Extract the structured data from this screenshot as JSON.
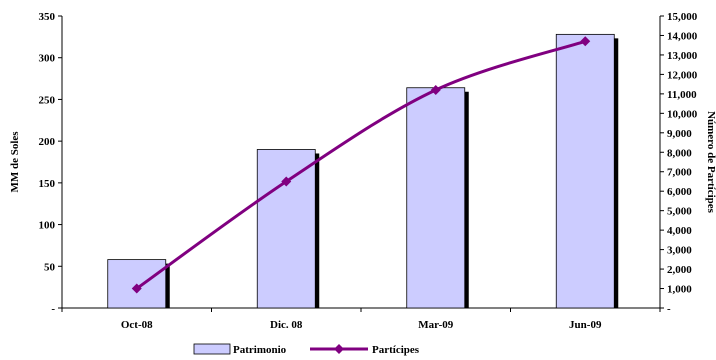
{
  "chart_data": {
    "type": "bar",
    "categories": [
      "Oct-08",
      "Dic. 08",
      "Mar-09",
      "Jun-09"
    ],
    "series": [
      {
        "name": "Patrimonio",
        "type": "bar",
        "axis": "left",
        "values": [
          58,
          190,
          264,
          328
        ],
        "color": "#ccccff",
        "shadow_color": "#000000"
      },
      {
        "name": "Partícipes",
        "type": "line",
        "axis": "right",
        "values": [
          1000,
          6500,
          11200,
          13700
        ],
        "color": "#800080",
        "marker": "diamond"
      }
    ],
    "title": "",
    "ylabel": "MM de Soles",
    "y2label": "Número de Partícipes",
    "ylim": [
      0,
      350
    ],
    "yticks": [
      "-",
      "50",
      "100",
      "150",
      "200",
      "250",
      "300",
      "350"
    ],
    "y2lim": [
      0,
      15000
    ],
    "y2ticks": [
      "-",
      "1,000",
      "2,000",
      "3,000",
      "4,000",
      "5,000",
      "6,000",
      "7,000",
      "8,000",
      "9,000",
      "10,000",
      "11,000",
      "12,000",
      "13,000",
      "14,000",
      "15,000"
    ],
    "grid": false,
    "legend_position": "bottom"
  }
}
